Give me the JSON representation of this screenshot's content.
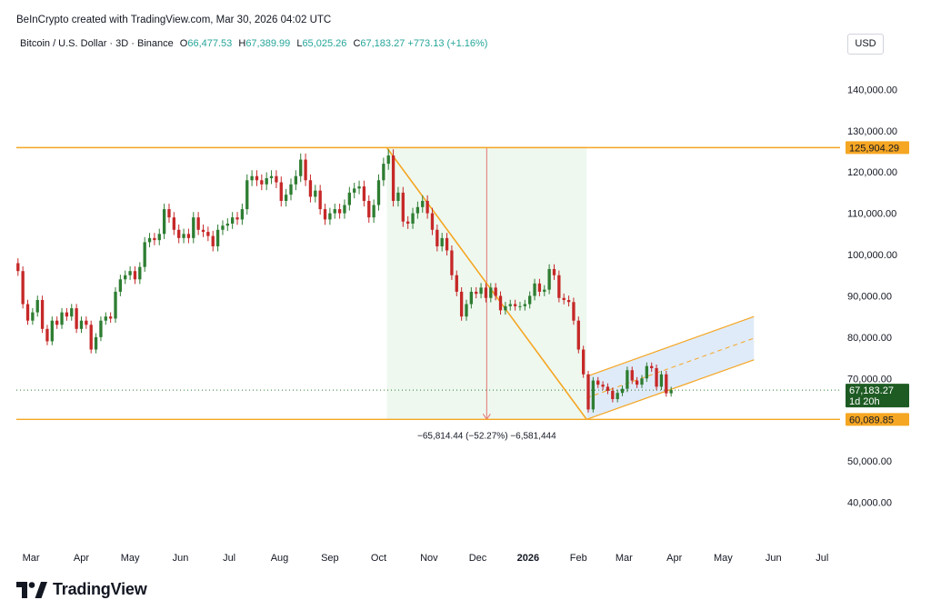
{
  "credit": "BeInCrypto created with TradingView.com, Mar 30, 2026 04:02 UTC",
  "symbol": "Bitcoin / U.S. Dollar · 3D · Binance",
  "ohlc": {
    "o_label": "O",
    "o": "66,477.53",
    "h_label": "H",
    "h": "67,389.99",
    "l_label": "L",
    "l": "65,025.26",
    "c_label": "C",
    "c": "67,183.27",
    "change": "+773.13 (+1.16%)"
  },
  "currency": "USD",
  "footer_brand": "TradingView",
  "colors": {
    "up": "#26a69a",
    "down": "#ef5350",
    "candle_up": "#2e7d32",
    "candle_down": "#c62828",
    "level_line": "#f5a623",
    "range_fill": "#e8f5e9",
    "channel_fill": "#dbe7f8",
    "price_label_orange": "#f5a623",
    "current_price_bg": "#1e5b23"
  },
  "chart_data": {
    "type": "candlestick",
    "interval": "3D",
    "ylim": [
      30000,
      148000
    ],
    "y_ticks": [
      "140,000.00",
      "130,000.00",
      "120,000.00",
      "110,000.00",
      "100,000.00",
      "90,000.00",
      "80,000.00",
      "70,000.00",
      "50,000.00",
      "40,000.00"
    ],
    "y_tick_values": [
      140000,
      130000,
      120000,
      110000,
      100000,
      90000,
      80000,
      70000,
      50000,
      40000
    ],
    "x_ticks": [
      {
        "label": "Mar",
        "date": "2025-03-01"
      },
      {
        "label": "Apr",
        "date": "2025-04-01"
      },
      {
        "label": "May",
        "date": "2025-05-01"
      },
      {
        "label": "Jun",
        "date": "2025-06-01"
      },
      {
        "label": "Jul",
        "date": "2025-07-01"
      },
      {
        "label": "Aug",
        "date": "2025-08-01"
      },
      {
        "label": "Sep",
        "date": "2025-09-01"
      },
      {
        "label": "Oct",
        "date": "2025-10-01"
      },
      {
        "label": "Nov",
        "date": "2025-11-01"
      },
      {
        "label": "Dec",
        "date": "2025-12-01"
      },
      {
        "label": "2026",
        "date": "2026-01-01",
        "bold": true
      },
      {
        "label": "Feb",
        "date": "2026-02-01"
      },
      {
        "label": "Mar",
        "date": "2026-03-01"
      },
      {
        "label": "Apr",
        "date": "2026-04-01"
      },
      {
        "label": "May",
        "date": "2026-05-01"
      },
      {
        "label": "Jun",
        "date": "2026-06-01"
      },
      {
        "label": "Jul",
        "date": "2026-07-01"
      }
    ],
    "x_range": [
      "2025-02-20",
      "2026-07-12"
    ],
    "closes": [
      {
        "date": "2025-02-21",
        "c": 96000
      },
      {
        "date": "2025-02-24",
        "c": 88000
      },
      {
        "date": "2025-02-27",
        "c": 84000
      },
      {
        "date": "2025-03-02",
        "c": 86000
      },
      {
        "date": "2025-03-05",
        "c": 89000
      },
      {
        "date": "2025-03-08",
        "c": 82000
      },
      {
        "date": "2025-03-11",
        "c": 79000
      },
      {
        "date": "2025-03-14",
        "c": 84000
      },
      {
        "date": "2025-03-17",
        "c": 83000
      },
      {
        "date": "2025-03-20",
        "c": 86000
      },
      {
        "date": "2025-03-23",
        "c": 85000
      },
      {
        "date": "2025-03-26",
        "c": 87000
      },
      {
        "date": "2025-03-29",
        "c": 82000
      },
      {
        "date": "2025-04-01",
        "c": 84000
      },
      {
        "date": "2025-04-04",
        "c": 83000
      },
      {
        "date": "2025-04-07",
        "c": 77000
      },
      {
        "date": "2025-04-10",
        "c": 80000
      },
      {
        "date": "2025-04-13",
        "c": 84000
      },
      {
        "date": "2025-04-16",
        "c": 85000
      },
      {
        "date": "2025-04-19",
        "c": 84500
      },
      {
        "date": "2025-04-22",
        "c": 91000
      },
      {
        "date": "2025-04-25",
        "c": 94000
      },
      {
        "date": "2025-04-28",
        "c": 95000
      },
      {
        "date": "2025-05-01",
        "c": 96000
      },
      {
        "date": "2025-05-04",
        "c": 94000
      },
      {
        "date": "2025-05-07",
        "c": 97000
      },
      {
        "date": "2025-05-10",
        "c": 103000
      },
      {
        "date": "2025-05-13",
        "c": 104000
      },
      {
        "date": "2025-05-16",
        "c": 103500
      },
      {
        "date": "2025-05-19",
        "c": 105000
      },
      {
        "date": "2025-05-22",
        "c": 111000
      },
      {
        "date": "2025-05-25",
        "c": 109000
      },
      {
        "date": "2025-05-28",
        "c": 106000
      },
      {
        "date": "2025-05-31",
        "c": 104000
      },
      {
        "date": "2025-06-03",
        "c": 105000
      },
      {
        "date": "2025-06-06",
        "c": 104000
      },
      {
        "date": "2025-06-09",
        "c": 109000
      },
      {
        "date": "2025-06-12",
        "c": 106000
      },
      {
        "date": "2025-06-15",
        "c": 105500
      },
      {
        "date": "2025-06-18",
        "c": 104500
      },
      {
        "date": "2025-06-21",
        "c": 102000
      },
      {
        "date": "2025-06-24",
        "c": 106000
      },
      {
        "date": "2025-06-27",
        "c": 107000
      },
      {
        "date": "2025-06-30",
        "c": 107500
      },
      {
        "date": "2025-07-03",
        "c": 109000
      },
      {
        "date": "2025-07-06",
        "c": 108500
      },
      {
        "date": "2025-07-09",
        "c": 111000
      },
      {
        "date": "2025-07-12",
        "c": 118000
      },
      {
        "date": "2025-07-15",
        "c": 119000
      },
      {
        "date": "2025-07-18",
        "c": 118000
      },
      {
        "date": "2025-07-21",
        "c": 117000
      },
      {
        "date": "2025-07-24",
        "c": 118500
      },
      {
        "date": "2025-07-27",
        "c": 119000
      },
      {
        "date": "2025-07-30",
        "c": 117500
      },
      {
        "date": "2025-08-02",
        "c": 113000
      },
      {
        "date": "2025-08-05",
        "c": 114500
      },
      {
        "date": "2025-08-08",
        "c": 117000
      },
      {
        "date": "2025-08-11",
        "c": 119000
      },
      {
        "date": "2025-08-14",
        "c": 123000
      },
      {
        "date": "2025-08-17",
        "c": 118000
      },
      {
        "date": "2025-08-20",
        "c": 114000
      },
      {
        "date": "2025-08-23",
        "c": 115500
      },
      {
        "date": "2025-08-26",
        "c": 111000
      },
      {
        "date": "2025-08-29",
        "c": 108500
      },
      {
        "date": "2025-09-01",
        "c": 110000
      },
      {
        "date": "2025-09-04",
        "c": 111000
      },
      {
        "date": "2025-09-07",
        "c": 110000
      },
      {
        "date": "2025-09-10",
        "c": 112000
      },
      {
        "date": "2025-09-13",
        "c": 115000
      },
      {
        "date": "2025-09-16",
        "c": 116000
      },
      {
        "date": "2025-09-19",
        "c": 116500
      },
      {
        "date": "2025-09-22",
        "c": 113000
      },
      {
        "date": "2025-09-25",
        "c": 109000
      },
      {
        "date": "2025-09-28",
        "c": 112000
      },
      {
        "date": "2025-10-01",
        "c": 118000
      },
      {
        "date": "2025-10-04",
        "c": 122000
      },
      {
        "date": "2025-10-07",
        "c": 124000
      },
      {
        "date": "2025-10-10",
        "c": 113000
      },
      {
        "date": "2025-10-13",
        "c": 115000
      },
      {
        "date": "2025-10-16",
        "c": 108000
      },
      {
        "date": "2025-10-19",
        "c": 107500
      },
      {
        "date": "2025-10-22",
        "c": 110000
      },
      {
        "date": "2025-10-25",
        "c": 111500
      },
      {
        "date": "2025-10-28",
        "c": 113000
      },
      {
        "date": "2025-10-31",
        "c": 110000
      },
      {
        "date": "2025-11-03",
        "c": 106000
      },
      {
        "date": "2025-11-06",
        "c": 102000
      },
      {
        "date": "2025-11-09",
        "c": 104000
      },
      {
        "date": "2025-11-12",
        "c": 101000
      },
      {
        "date": "2025-11-15",
        "c": 95000
      },
      {
        "date": "2025-11-18",
        "c": 91000
      },
      {
        "date": "2025-11-21",
        "c": 85000
      },
      {
        "date": "2025-11-24",
        "c": 88000
      },
      {
        "date": "2025-11-27",
        "c": 91000
      },
      {
        "date": "2025-11-30",
        "c": 90500
      },
      {
        "date": "2025-12-03",
        "c": 92000
      },
      {
        "date": "2025-12-06",
        "c": 89500
      },
      {
        "date": "2025-12-09",
        "c": 92000
      },
      {
        "date": "2025-12-12",
        "c": 90000
      },
      {
        "date": "2025-12-15",
        "c": 86500
      },
      {
        "date": "2025-12-18",
        "c": 87500
      },
      {
        "date": "2025-12-21",
        "c": 88000
      },
      {
        "date": "2025-12-24",
        "c": 87500
      },
      {
        "date": "2025-12-27",
        "c": 87500
      },
      {
        "date": "2025-12-30",
        "c": 88000
      },
      {
        "date": "2026-01-02",
        "c": 90000
      },
      {
        "date": "2026-01-05",
        "c": 93000
      },
      {
        "date": "2026-01-08",
        "c": 91000
      },
      {
        "date": "2026-01-11",
        "c": 91500
      },
      {
        "date": "2026-01-14",
        "c": 96500
      },
      {
        "date": "2026-01-17",
        "c": 95000
      },
      {
        "date": "2026-01-20",
        "c": 89500
      },
      {
        "date": "2026-01-23",
        "c": 89000
      },
      {
        "date": "2026-01-26",
        "c": 88500
      },
      {
        "date": "2026-01-29",
        "c": 84000
      },
      {
        "date": "2026-02-01",
        "c": 77000
      },
      {
        "date": "2026-02-04",
        "c": 71000
      },
      {
        "date": "2026-02-07",
        "c": 62500
      },
      {
        "date": "2026-02-10",
        "c": 69500
      },
      {
        "date": "2026-02-13",
        "c": 68500
      },
      {
        "date": "2026-02-16",
        "c": 68000
      },
      {
        "date": "2026-02-19",
        "c": 67000
      },
      {
        "date": "2026-02-22",
        "c": 65000
      },
      {
        "date": "2026-02-25",
        "c": 66500
      },
      {
        "date": "2026-02-28",
        "c": 67500
      },
      {
        "date": "2026-03-03",
        "c": 72000
      },
      {
        "date": "2026-03-06",
        "c": 69500
      },
      {
        "date": "2026-03-09",
        "c": 68500
      },
      {
        "date": "2026-03-12",
        "c": 70000
      },
      {
        "date": "2026-03-15",
        "c": 73000
      },
      {
        "date": "2026-03-18",
        "c": 72500
      },
      {
        "date": "2026-03-21",
        "c": 68000
      },
      {
        "date": "2026-03-24",
        "c": 71000
      },
      {
        "date": "2026-03-27",
        "c": 66400
      },
      {
        "date": "2026-03-30",
        "c": 67183.27
      }
    ],
    "horizontal_levels": [
      {
        "value": 125904.29,
        "label": "125,904.29"
      },
      {
        "value": 60089.85,
        "label": "60,089.85"
      }
    ],
    "current_price": {
      "value": 67183.27,
      "label": "67,183.27",
      "countdown": "1d 20h"
    },
    "measure": {
      "start_date": "2025-10-06",
      "end_date": "2026-02-06",
      "from": 125904.29,
      "to": 60089.85,
      "label": "−65,814.44 (−52.27%) −6,581,444"
    },
    "trendline": {
      "from": {
        "date": "2025-10-06",
        "value": 125904.29
      },
      "to": {
        "date": "2026-02-06",
        "value": 60089.85
      }
    },
    "channel": {
      "start_date": "2026-02-06",
      "end_date": "2026-05-20",
      "lower_start": 60089.85,
      "lower_end": 74500,
      "upper_start": 70500,
      "upper_end": 85000
    }
  }
}
